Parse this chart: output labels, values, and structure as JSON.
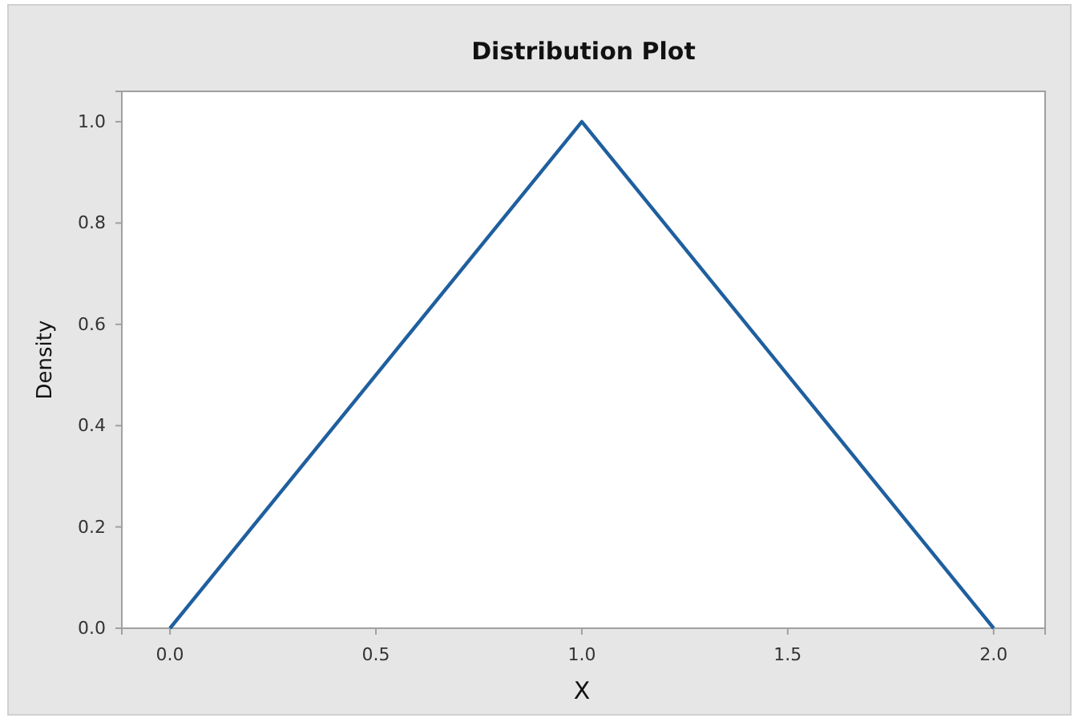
{
  "chart_data": {
    "type": "line",
    "title": "Distribution Plot",
    "xlabel": "X",
    "ylabel": "Density",
    "x": [
      0,
      1,
      2
    ],
    "series": [
      {
        "color": "#1f5f9e",
        "values": [
          0,
          1,
          0
        ]
      }
    ],
    "xlim": [
      -0.117,
      2.125
    ],
    "xticks": [
      {
        "value": 0,
        "label": "0.0"
      },
      0.5,
      {
        "value": 1,
        "label": "1.0"
      },
      1.5,
      {
        "value": 2,
        "label": "2.0"
      }
    ],
    "ylim": [
      0,
      1.06
    ],
    "yticks": [
      {
        "value": 0,
        "label": "0.0"
      },
      0.2,
      0.4,
      0.6,
      0.8,
      {
        "value": 1,
        "label": "1.0"
      }
    ],
    "grid": false,
    "marker": "none",
    "line_style": "solid"
  }
}
